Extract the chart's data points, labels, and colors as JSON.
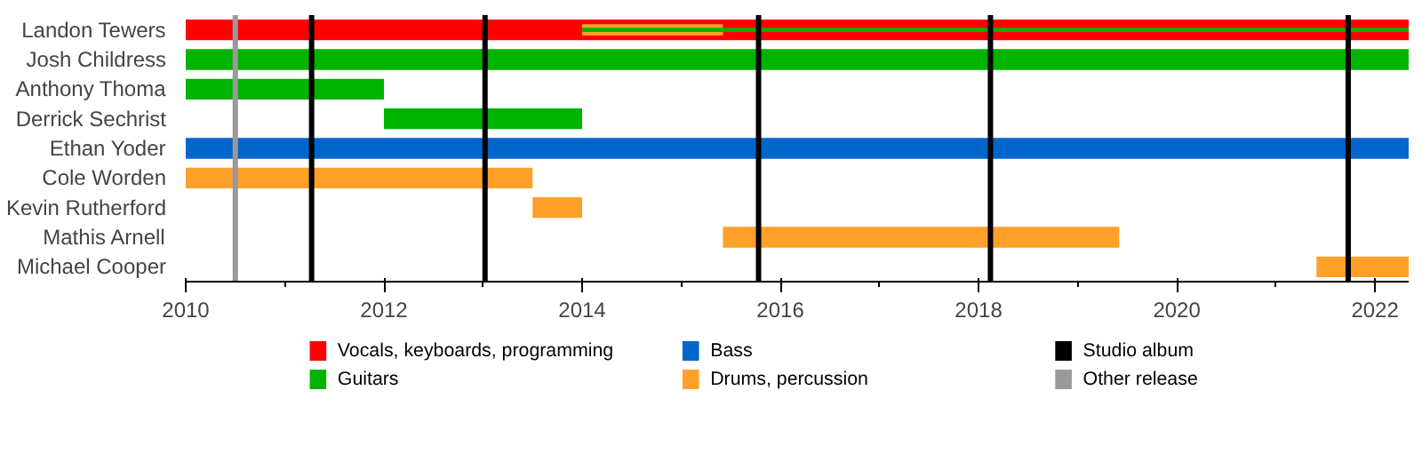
{
  "chart_data": {
    "type": "bar",
    "orientation": "horizontal",
    "categories": [
      "Landon Tewers",
      "Josh Childress",
      "Anthony Thoma",
      "Derrick Sechrist",
      "Ethan Yoder",
      "Cole Worden",
      "Kevin Rutherford",
      "Mathis Arnell",
      "Michael Cooper"
    ],
    "series": [
      {
        "name": "Vocals, keyboards, programming",
        "color": "#ff0000",
        "base": [
          2010,
          null,
          null,
          null,
          null,
          null,
          null,
          null,
          null
        ],
        "values": [
          12.34,
          null,
          null,
          null,
          null,
          null,
          null,
          null,
          null
        ]
      },
      {
        "name": "Guitars",
        "color": "#00b300",
        "base": [
          2014,
          2010,
          2010,
          2012,
          null,
          null,
          null,
          null,
          null
        ],
        "values": [
          8.34,
          12.34,
          2,
          2,
          null,
          null,
          null,
          null,
          null
        ]
      },
      {
        "name": "Bass",
        "color": "#0066cc",
        "base": [
          null,
          null,
          null,
          null,
          2010,
          null,
          null,
          null,
          null
        ],
        "values": [
          null,
          null,
          null,
          null,
          12.34,
          null,
          null,
          null,
          null
        ]
      },
      {
        "name": "Drums, percussion",
        "color": "#ffa02a",
        "base": [
          2014,
          null,
          null,
          null,
          null,
          2010,
          2013.5,
          2015.42,
          2021.41
        ],
        "values": [
          1.42,
          null,
          null,
          null,
          null,
          3.5,
          0.5,
          4,
          0.93
        ]
      }
    ],
    "ref_lines": [
      {
        "axis": "x",
        "value": 2011.27,
        "label": "Studio album",
        "color": "#000000"
      },
      {
        "axis": "x",
        "value": 2010.5,
        "label": "Other release",
        "color": "#999999"
      },
      {
        "axis": "x",
        "value": 2013.02,
        "color": "#000000"
      },
      {
        "axis": "x",
        "value": 2015.78,
        "color": "#000000"
      },
      {
        "axis": "x",
        "value": 2018.12,
        "color": "#000000"
      },
      {
        "axis": "x",
        "value": 2021.73,
        "color": "#000000"
      }
    ],
    "xlim": [
      2010,
      2022.34
    ],
    "xticks": [
      2010,
      2012,
      2014,
      2016,
      2018,
      2020,
      2022
    ],
    "grid": false,
    "legend": "bottom"
  }
}
